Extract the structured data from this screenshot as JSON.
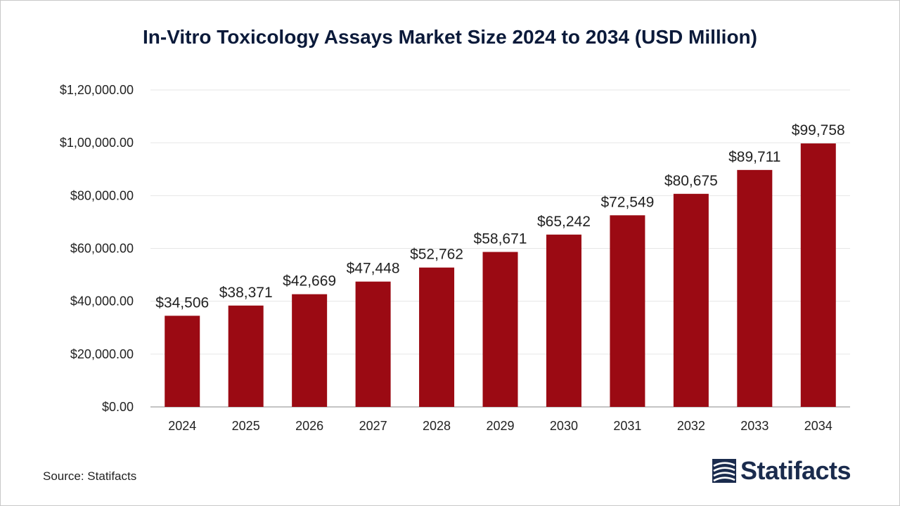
{
  "chart_data": {
    "type": "bar",
    "title": "In-Vitro Toxicology Assays Market Size 2024 to 2034 (USD Million)",
    "xlabel": "",
    "ylabel": "",
    "categories": [
      "2024",
      "2025",
      "2026",
      "2027",
      "2028",
      "2029",
      "2030",
      "2031",
      "2032",
      "2033",
      "2034"
    ],
    "values": [
      34506,
      38371,
      42669,
      47448,
      52762,
      58671,
      65242,
      72549,
      80675,
      89711,
      99758
    ],
    "value_labels": [
      "$34,506",
      "$38,371",
      "$42,669",
      "$47,448",
      "$52,762",
      "$58,671",
      "$65,242",
      "$72,549",
      "$80,675",
      "$89,711",
      "$99,758"
    ],
    "ylim": [
      0,
      120000
    ],
    "yticks": [
      0,
      20000,
      40000,
      60000,
      80000,
      100000,
      120000
    ],
    "ytick_labels": [
      "$0.00",
      "$20,000.00",
      "$40,000.00",
      "$60,000.00",
      "$80,000.00",
      "$1,00,000.00",
      "$1,20,000.00"
    ],
    "grid": true,
    "bar_color": "#9b0a13"
  },
  "footer": {
    "source": "Source: Statifacts",
    "brand": "Statifacts"
  },
  "colors": {
    "title": "#0b1a3a",
    "brand": "#1a2b4d",
    "grid": "#e6e6e6"
  }
}
